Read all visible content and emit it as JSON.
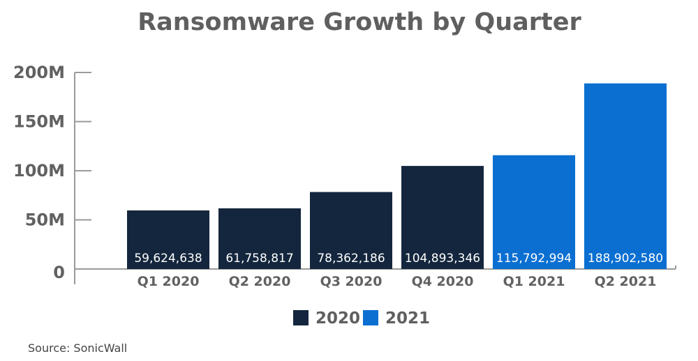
{
  "chart_data": {
    "type": "bar",
    "title": "Ransomware Growth by Quarter",
    "xlabel": "",
    "ylabel": "",
    "categories": [
      "Q1 2020",
      "Q2 2020",
      "Q3 2020",
      "Q4 2020",
      "Q1 2021",
      "Q2 2021"
    ],
    "values": [
      59624638,
      61758817,
      78362186,
      104893346,
      115792994,
      188902580
    ],
    "data_labels": [
      "59,624,638",
      "61,758,817",
      "78,362,186",
      "104,893,346",
      "115,792,994",
      "188,902,580"
    ],
    "series_of_bar": [
      "2020",
      "2020",
      "2020",
      "2020",
      "2021",
      "2021"
    ],
    "ylim": [
      0,
      200000000
    ],
    "yticks": [
      0,
      50000000,
      100000000,
      150000000,
      200000000
    ],
    "ytick_labels": [
      "0",
      "50M",
      "100M",
      "150M",
      "200M"
    ],
    "grid": false,
    "legend": {
      "position": "bottom-center",
      "entries": [
        {
          "name": "2020",
          "color": "#14263d"
        },
        {
          "name": "2021",
          "color": "#0a6fd1"
        }
      ]
    }
  },
  "source": "Source: SonicWall",
  "colors": {
    "axis": "#9a9a9a",
    "text": "#5f5f5f"
  }
}
